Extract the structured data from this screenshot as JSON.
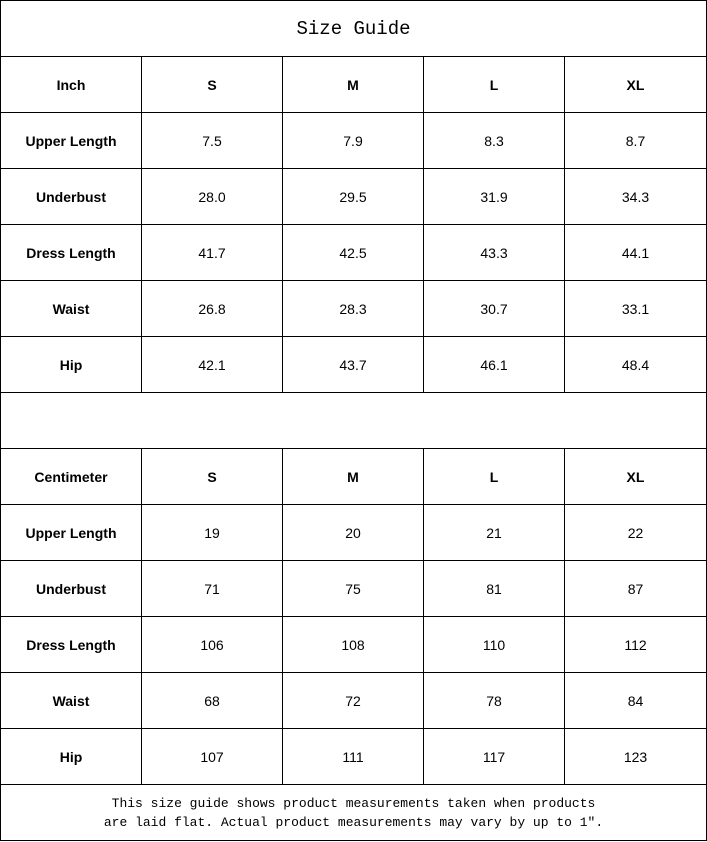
{
  "title": "Size Guide",
  "tables": [
    {
      "header": [
        "Inch",
        "S",
        "M",
        "L",
        "XL"
      ],
      "rows": [
        [
          "Upper Length",
          "7.5",
          "7.9",
          "8.3",
          "8.7"
        ],
        [
          "Underbust",
          "28.0",
          "29.5",
          "31.9",
          "34.3"
        ],
        [
          "Dress Length",
          "41.7",
          "42.5",
          "43.3",
          "44.1"
        ],
        [
          "Waist",
          "26.8",
          "28.3",
          "30.7",
          "33.1"
        ],
        [
          "Hip",
          "42.1",
          "43.7",
          "46.1",
          "48.4"
        ]
      ]
    },
    {
      "header": [
        "Centimeter",
        "S",
        "M",
        "L",
        "XL"
      ],
      "rows": [
        [
          "Upper Length",
          "19",
          "20",
          "21",
          "22"
        ],
        [
          "Underbust",
          "71",
          "75",
          "81",
          "87"
        ],
        [
          "Dress Length",
          "106",
          "108",
          "110",
          "112"
        ],
        [
          "Waist",
          "68",
          "72",
          "78",
          "84"
        ],
        [
          "Hip",
          "107",
          "111",
          "117",
          "123"
        ]
      ]
    }
  ],
  "footer": {
    "line1": "This size guide shows product measurements taken when products",
    "line2": "are laid flat. Actual product measurements may vary by up to 1″."
  }
}
